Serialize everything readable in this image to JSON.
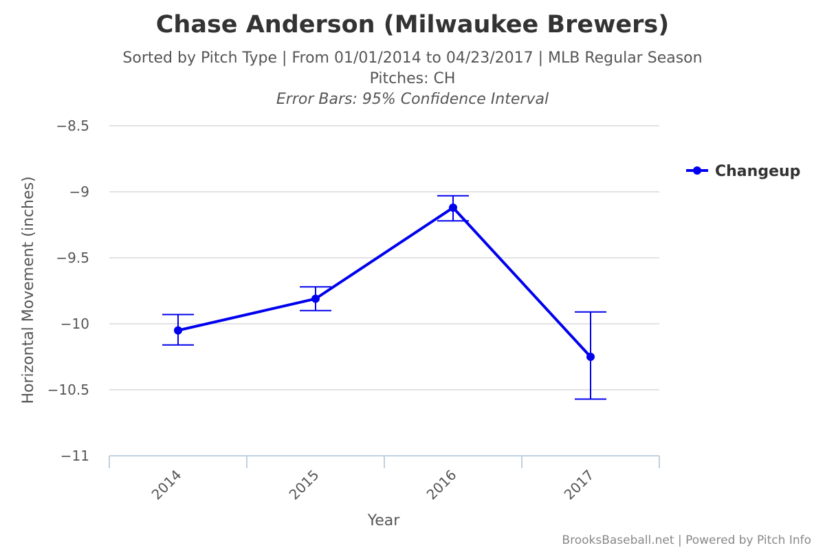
{
  "chart_data": {
    "type": "line",
    "title": "Chase Anderson (Milwaukee Brewers)",
    "subtitle_line1": "Sorted by Pitch Type | From 01/01/2014 to 04/23/2017 | MLB Regular Season",
    "subtitle_line2": "Pitches: CH",
    "subtitle_line3": "Error Bars: 95% Confidence Interval",
    "xlabel": "Year",
    "ylabel": "Horizontal Movement (inches)",
    "categories": [
      "2014",
      "2015",
      "2016",
      "2017"
    ],
    "ylim": [
      -11,
      -8.5
    ],
    "yticks": [
      -8.5,
      -9,
      -9.5,
      -10,
      -10.5,
      -11
    ],
    "ytick_labels": [
      "−8.5",
      "−9",
      "−9.5",
      "−10",
      "−10.5",
      "−11"
    ],
    "grid": true,
    "legend_position": "top-right",
    "series": [
      {
        "name": "Changeup",
        "color": "#0000ee",
        "values": [
          -10.05,
          -9.81,
          -9.12,
          -10.25
        ],
        "error_low": [
          -10.16,
          -9.9,
          -9.22,
          -10.57
        ],
        "error_high": [
          -9.93,
          -9.72,
          -9.03,
          -9.91
        ]
      }
    ]
  },
  "credits": "BrooksBaseball.net | Powered by Pitch Info"
}
